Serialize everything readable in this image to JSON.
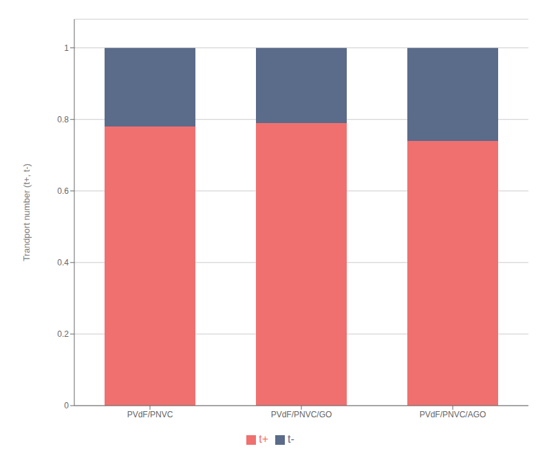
{
  "chart_data": {
    "type": "bar",
    "stacked": true,
    "categories": [
      "PVdF/PNVC",
      "PVdF/PNVC/GO",
      "PVdF/PNVC/AGO"
    ],
    "series": [
      {
        "name": "t+",
        "color": "#F07070",
        "values": [
          0.78,
          0.79,
          0.74
        ]
      },
      {
        "name": "t-",
        "color": "#5B6B8A",
        "values": [
          0.22,
          0.21,
          0.26
        ]
      }
    ],
    "ylabel": "Trandport number (t+, t-)",
    "ylim": [
      0,
      1.08
    ],
    "yticks": [
      0,
      0.2,
      0.4,
      0.6,
      0.8,
      1
    ],
    "grid": true,
    "legend": "bottom"
  }
}
